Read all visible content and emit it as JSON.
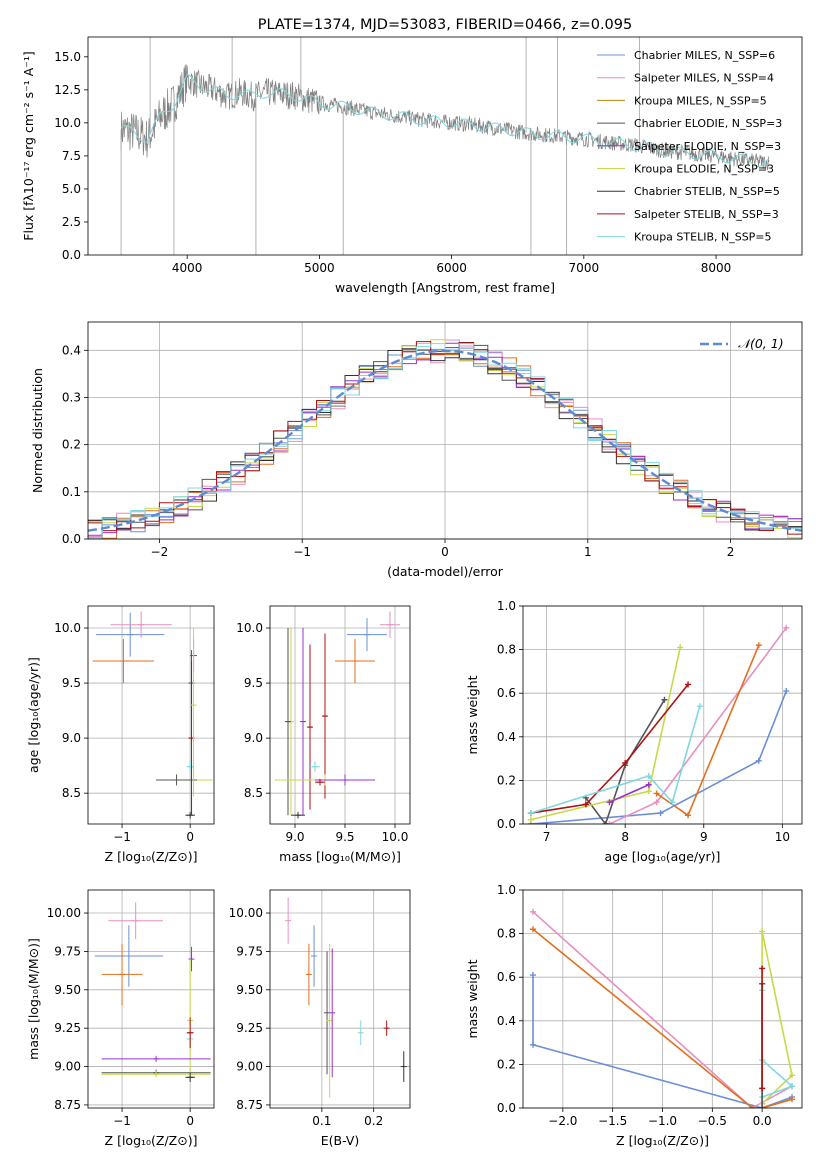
{
  "chart_data": [
    {
      "id": "spectrum",
      "type": "line",
      "title": "PLATE=1374, MJD=53083, FIBERID=0466, z=0.095",
      "xlabel": "wavelength [Angstrom, rest frame]",
      "ylabel": "Flux [fλ10⁻¹⁷ erg cm⁻² s⁻¹ A⁻¹]",
      "xlim": [
        3250,
        8650
      ],
      "ylim": [
        0,
        16.5
      ],
      "xticks": [
        4000,
        5000,
        6000,
        7000,
        8000
      ],
      "yticks": [
        0.0,
        2.5,
        5.0,
        7.5,
        10.0,
        12.5,
        15.0
      ],
      "legend_position": "upper-right",
      "legend": [
        {
          "label": "Chabrier MILES, N_SSP=6",
          "color": "#6a8fd8"
        },
        {
          "label": "Salpeter MILES, N_SSP=4",
          "color": "#e88fc0"
        },
        {
          "label": "Kroupa MILES, N_SSP=5",
          "color": "#b8860b"
        },
        {
          "label": "Chabrier ELODIE, N_SSP=3",
          "color": "#555555"
        },
        {
          "label": "Salpeter ELODIE, N_SSP=3",
          "color": "#9b30d0"
        },
        {
          "label": "Kroupa ELODIE, N_SSP=3",
          "color": "#c8d84a"
        },
        {
          "label": "Chabrier STELIB, N_SSP=5",
          "color": "#333333"
        },
        {
          "label": "Salpeter STELIB, N_SSP=3",
          "color": "#b01010"
        },
        {
          "label": "Kroupa STELIB, N_SSP=5",
          "color": "#7fd8e0"
        }
      ],
      "data_color": "#808080",
      "model_color": "#7fd8e0",
      "data_curve": {
        "x": [
          3500,
          3600,
          3700,
          3800,
          3900,
          4000,
          4100,
          4200,
          4300,
          4400,
          4500,
          4600,
          4700,
          4800,
          4900,
          5000,
          5200,
          5400,
          5600,
          5800,
          6000,
          6200,
          6400,
          6600,
          6800,
          7000,
          7200,
          7400,
          7600,
          7800,
          8000,
          8200,
          8400
        ],
        "y": [
          9.5,
          9.3,
          8.8,
          10.5,
          11.5,
          13.3,
          12.8,
          12.5,
          12.0,
          12.3,
          12.0,
          12.3,
          12.2,
          12.1,
          11.8,
          11.5,
          11.2,
          10.8,
          10.5,
          10.2,
          10.0,
          9.8,
          9.5,
          9.2,
          9.0,
          8.8,
          8.5,
          8.3,
          7.9,
          7.7,
          7.5,
          7.2,
          7.0
        ]
      },
      "spikes_x": [
        3500,
        3720,
        3900,
        4340,
        4520,
        4860,
        5180,
        6563,
        6600,
        6800,
        6870,
        7420
      ]
    },
    {
      "id": "residuals",
      "type": "line",
      "xlabel": "(data-model)/error",
      "ylabel": "Normed distribution",
      "xlim": [
        -2.5,
        2.5
      ],
      "ylim": [
        0,
        0.46
      ],
      "xticks": [
        -2,
        -1,
        0,
        1,
        2
      ],
      "yticks": [
        0.0,
        0.1,
        0.2,
        0.3,
        0.4
      ],
      "legend_label": "𝒩(0, 1)",
      "legend_position": "upper-right",
      "gaussian": {
        "mean": 0,
        "sigma": 1,
        "color": "#5b8bd6"
      },
      "hist_colors": [
        "#6a8fd8",
        "#e88fc0",
        "#e07020",
        "#555555",
        "#9b30d0",
        "#c8d84a",
        "#333333",
        "#b01010",
        "#7fd8e0"
      ]
    },
    {
      "id": "age-vs-Z",
      "type": "scatter",
      "xlabel": "Z [log₁₀(Z/Z⊙)]",
      "ylabel": "age  [log₁₀(age/yr)]",
      "xlim": [
        -1.5,
        0.35
      ],
      "ylim": [
        8.22,
        10.2
      ],
      "xticks": [
        -1,
        0
      ],
      "yticks": [
        8.5,
        9.0,
        9.5,
        10.0
      ],
      "points": [
        {
          "x": -0.88,
          "y": 9.94,
          "xerr": 0.5,
          "yerr": 0.2,
          "color": "#6a8fd8"
        },
        {
          "x": -0.72,
          "y": 10.03,
          "xerr": 0.45,
          "yerr": 0.12,
          "color": "#e88fc0"
        },
        {
          "x": -0.98,
          "y": 9.7,
          "xerr": 0.45,
          "yerr": 0.2,
          "color": "#e07020"
        },
        {
          "x": 0.05,
          "y": 9.75,
          "xerr": 0.05,
          "yerr": 0.15,
          "color": "#9b30d0"
        },
        {
          "x": 0.02,
          "y": 9.5,
          "xerr": 0.03,
          "yerr": 0.3,
          "color": "#555555"
        },
        {
          "x": 0.05,
          "y": 8.62,
          "xerr": 0.28,
          "yerr": 0.15,
          "color": "#c8d84a"
        },
        {
          "x": -0.2,
          "y": 8.62,
          "xerr": 0.3,
          "yerr": 0.05,
          "color": "#555555"
        },
        {
          "x": 0.0,
          "y": 8.74,
          "xerr": 0.05,
          "yerr": 0.05,
          "color": "#7fd8e0"
        },
        {
          "x": 0.0,
          "y": 8.3,
          "xerr": 0.07,
          "yerr": 0.03,
          "color": "#333333"
        },
        {
          "x": 0.02,
          "y": 9.0,
          "xerr": 0.03,
          "yerr": 0.7,
          "color": "#b01010"
        },
        {
          "x": 0.05,
          "y": 9.3,
          "xerr": 0.02,
          "yerr": 0.7,
          "color": "#c8d84a"
        }
      ]
    },
    {
      "id": "age-vs-mass",
      "type": "scatter",
      "xlabel": "mass [log₁₀(M/M⊙)]",
      "ylabel": "",
      "xlim": [
        8.75,
        10.15
      ],
      "ylim": [
        8.22,
        10.2
      ],
      "xticks": [
        9.0,
        9.5,
        10.0
      ],
      "yticks": [
        8.5,
        9.0,
        9.5,
        10.0
      ],
      "points": [
        {
          "x": 9.72,
          "y": 9.94,
          "xerr": 0.2,
          "yerr": 0.15,
          "color": "#6a8fd8"
        },
        {
          "x": 9.95,
          "y": 10.03,
          "xerr": 0.1,
          "yerr": 0.12,
          "color": "#e88fc0"
        },
        {
          "x": 9.6,
          "y": 9.7,
          "xerr": 0.2,
          "yerr": 0.2,
          "color": "#e07020"
        },
        {
          "x": 8.96,
          "y": 9.15,
          "xerr": 0.02,
          "yerr": 0.85,
          "color": "#c8d84a"
        },
        {
          "x": 8.93,
          "y": 9.15,
          "xerr": 0.02,
          "yerr": 0.85,
          "color": "#555555"
        },
        {
          "x": 9.08,
          "y": 9.15,
          "xerr": 0.02,
          "yerr": 0.85,
          "color": "#9b30d0"
        },
        {
          "x": 9.15,
          "y": 9.1,
          "xerr": 0.02,
          "yerr": 0.75,
          "color": "#b01010"
        },
        {
          "x": 9.3,
          "y": 9.2,
          "xerr": 0.02,
          "yerr": 0.75,
          "color": "#b01010"
        },
        {
          "x": 9.3,
          "y": 8.62,
          "xerr": 0.5,
          "yerr": 0.05,
          "color": "#c8d84a"
        },
        {
          "x": 9.5,
          "y": 8.62,
          "xerr": 0.3,
          "yerr": 0.05,
          "color": "#9b30d0"
        },
        {
          "x": 9.2,
          "y": 8.74,
          "xerr": 0.05,
          "yerr": 0.05,
          "color": "#7fd8e0"
        },
        {
          "x": 9.03,
          "y": 8.3,
          "xerr": 0.07,
          "yerr": 0.03,
          "color": "#333333"
        },
        {
          "x": 9.25,
          "y": 8.6,
          "xerr": 0.05,
          "yerr": 0.03,
          "color": "#b01010"
        }
      ]
    },
    {
      "id": "weight-vs-age",
      "type": "line",
      "xlabel": "age  [log₁₀(age/yr)]",
      "ylabel": "mass weight",
      "xlim": [
        6.7,
        10.25
      ],
      "ylim": [
        0,
        1.0
      ],
      "xticks": [
        7,
        8,
        9,
        10
      ],
      "yticks": [
        0.0,
        0.2,
        0.4,
        0.6,
        0.8,
        1.0
      ],
      "series": [
        {
          "color": "#6a8fd8",
          "x": [
            6.8,
            8.45,
            9.7,
            10.05
          ],
          "y": [
            0.0,
            0.05,
            0.29,
            0.61
          ]
        },
        {
          "color": "#e88fc0",
          "x": [
            7.8,
            8.4,
            10.05
          ],
          "y": [
            0.0,
            0.1,
            0.9
          ]
        },
        {
          "color": "#e07020",
          "x": [
            8.4,
            8.8,
            9.7
          ],
          "y": [
            0.14,
            0.04,
            0.82
          ]
        },
        {
          "color": "#555555",
          "x": [
            7.5,
            7.75,
            8.0,
            8.5
          ],
          "y": [
            0.12,
            0.0,
            0.27,
            0.57
          ]
        },
        {
          "color": "#c8d84a",
          "x": [
            6.8,
            8.3,
            8.7
          ],
          "y": [
            0.02,
            0.15,
            0.81
          ]
        },
        {
          "color": "#9b30d0",
          "x": [
            7.8,
            8.3
          ],
          "y": [
            0.1,
            0.18
          ]
        },
        {
          "color": "#b01010",
          "x": [
            6.8,
            7.5,
            8.0,
            8.8
          ],
          "y": [
            0.05,
            0.09,
            0.28,
            0.64
          ]
        },
        {
          "color": "#7fd8e0",
          "x": [
            6.8,
            8.3,
            8.6,
            8.95
          ],
          "y": [
            0.05,
            0.22,
            0.1,
            0.54
          ]
        }
      ]
    },
    {
      "id": "mass-vs-Z",
      "type": "scatter",
      "xlabel": "Z [log₁₀(Z/Z⊙)]",
      "ylabel": "mass [log₁₀(M/M⊙)]",
      "xlim": [
        -1.5,
        0.35
      ],
      "ylim": [
        8.73,
        10.15
      ],
      "xticks": [
        -1,
        0
      ],
      "yticks": [
        8.75,
        9.0,
        9.25,
        9.5,
        9.75,
        10.0
      ],
      "points": [
        {
          "x": -0.9,
          "y": 9.72,
          "xerr": 0.5,
          "yerr": 0.2,
          "color": "#6a8fd8"
        },
        {
          "x": -0.8,
          "y": 9.95,
          "xerr": 0.4,
          "yerr": 0.12,
          "color": "#e88fc0"
        },
        {
          "x": -1.0,
          "y": 9.6,
          "xerr": 0.3,
          "yerr": 0.2,
          "color": "#e07020"
        },
        {
          "x": 0.02,
          "y": 9.7,
          "xerr": 0.02,
          "yerr": 0.08,
          "color": "#9b30d0"
        },
        {
          "x": 0.0,
          "y": 9.3,
          "xerr": 0.03,
          "yerr": 0.4,
          "color": "#c8d84a"
        },
        {
          "x": -0.5,
          "y": 9.05,
          "xerr": 0.8,
          "yerr": 0.02,
          "color": "#9b30d0"
        },
        {
          "x": -0.5,
          "y": 8.96,
          "xerr": 0.8,
          "yerr": 0.02,
          "color": "#555555"
        },
        {
          "x": -0.5,
          "y": 8.95,
          "xerr": 0.8,
          "yerr": 0.02,
          "color": "#c8d84a"
        },
        {
          "x": 0.0,
          "y": 9.18,
          "xerr": 0.05,
          "yerr": 0.05,
          "color": "#7fd8e0"
        },
        {
          "x": 0.0,
          "y": 8.93,
          "xerr": 0.07,
          "yerr": 0.03,
          "color": "#333333"
        },
        {
          "x": 0.0,
          "y": 9.22,
          "xerr": 0.05,
          "yerr": 0.1,
          "color": "#b01010"
        }
      ]
    },
    {
      "id": "mass-vs-EBV",
      "type": "scatter",
      "xlabel": "E(B-V)",
      "ylabel": "",
      "xlim": [
        0.0,
        0.27
      ],
      "ylim": [
        8.73,
        10.15
      ],
      "xticks": [
        0.1,
        0.2
      ],
      "yticks": [
        8.75,
        9.0,
        9.25,
        9.5,
        9.75,
        10.0
      ],
      "points": [
        {
          "x": 0.035,
          "y": 9.95,
          "xerr": 0.0,
          "yerr": 0.15,
          "color": "#e88fc0"
        },
        {
          "x": 0.085,
          "y": 9.72,
          "xerr": 0.0,
          "yerr": 0.2,
          "color": "#6a8fd8"
        },
        {
          "x": 0.075,
          "y": 9.6,
          "xerr": 0.0,
          "yerr": 0.2,
          "color": "#e07020"
        },
        {
          "x": 0.11,
          "y": 9.35,
          "xerr": 0.0,
          "yerr": 0.4,
          "color": "#555555"
        },
        {
          "x": 0.115,
          "y": 9.3,
          "xerr": 0.0,
          "yerr": 0.5,
          "color": "#c8d84a"
        },
        {
          "x": 0.12,
          "y": 9.35,
          "xerr": 0.0,
          "yerr": 0.42,
          "color": "#9b30d0"
        },
        {
          "x": 0.175,
          "y": 9.22,
          "xerr": 0.0,
          "yerr": 0.08,
          "color": "#7fd8e0"
        },
        {
          "x": 0.225,
          "y": 9.25,
          "xerr": 0.0,
          "yerr": 0.05,
          "color": "#b01010"
        },
        {
          "x": 0.258,
          "y": 9.0,
          "xerr": 0.0,
          "yerr": 0.1,
          "color": "#333333"
        }
      ]
    },
    {
      "id": "weight-vs-Z",
      "type": "line",
      "xlabel": "Z [log₁₀(Z/Z⊙)]",
      "ylabel": "mass weight",
      "xlim": [
        -2.4,
        0.4
      ],
      "ylim": [
        0,
        1.0
      ],
      "xticks": [
        -2.0,
        -1.5,
        -1.0,
        -0.5,
        0.0
      ],
      "yticks": [
        0.0,
        0.2,
        0.4,
        0.6,
        0.8,
        1.0
      ],
      "series": [
        {
          "color": "#6a8fd8",
          "x": [
            -2.3,
            -2.3,
            0.0,
            0.3
          ],
          "y": [
            0.61,
            0.29,
            0.0,
            0.05
          ]
        },
        {
          "color": "#e88fc0",
          "x": [
            -2.3,
            -0.1,
            0.3
          ],
          "y": [
            0.9,
            0.0,
            0.1
          ]
        },
        {
          "color": "#e07020",
          "x": [
            -2.3,
            -0.1,
            0.0,
            0.3
          ],
          "y": [
            0.82,
            0.0,
            0.0,
            0.04
          ]
        },
        {
          "color": "#c8d84a",
          "x": [
            0.0,
            0.0,
            0.3,
            0.0
          ],
          "y": [
            0.02,
            0.81,
            0.15,
            0.02
          ]
        },
        {
          "color": "#7fd8e0",
          "x": [
            0.0,
            0.0,
            0.3,
            0.0
          ],
          "y": [
            0.54,
            0.22,
            0.1,
            0.05
          ]
        },
        {
          "color": "#555555",
          "x": [
            0.0,
            0.0
          ],
          "y": [
            0.57,
            0.0
          ]
        },
        {
          "color": "#b01010",
          "x": [
            0.0,
            0.0
          ],
          "y": [
            0.64,
            0.09
          ]
        }
      ]
    }
  ]
}
